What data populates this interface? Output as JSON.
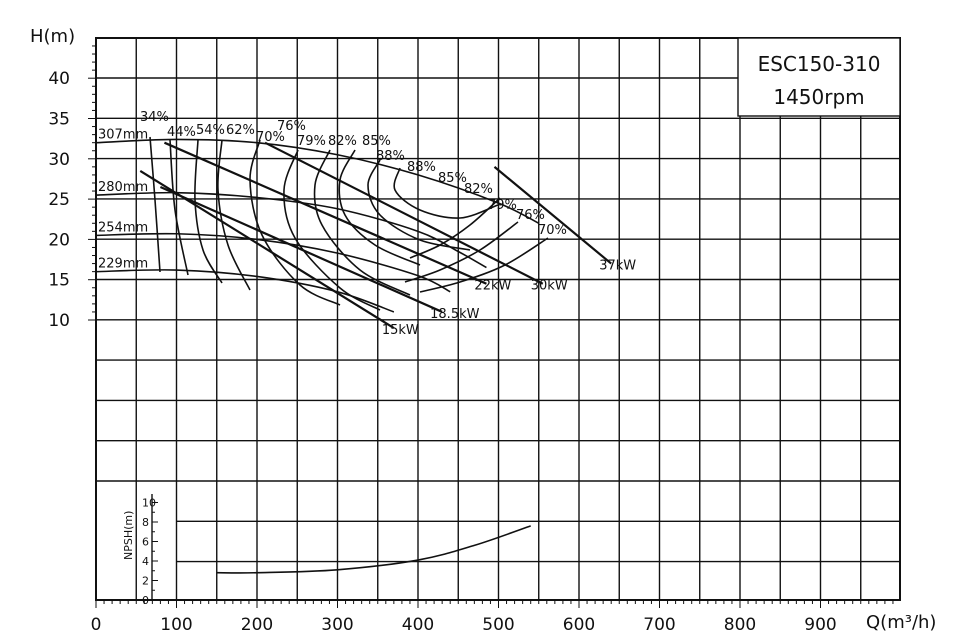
{
  "chart_data": {
    "type": "line",
    "title": "ESC150-310",
    "subtitle": "1450rpm",
    "xlabel": "Q(m³/h)",
    "ylabel": "H(m)",
    "npsh_label": "NPSH(m)",
    "xlim": [
      0,
      1000
    ],
    "ylim": [
      10,
      45
    ],
    "x_ticks": [
      "0",
      "100",
      "200",
      "300",
      "400",
      "500",
      "600",
      "700",
      "800",
      "900"
    ],
    "y_ticks": [
      "40",
      "35",
      "30",
      "25",
      "20",
      "15",
      "10"
    ],
    "npsh_ticks": [
      "10",
      "8",
      "6",
      "4",
      "2",
      "0"
    ],
    "npsh_lim": [
      0,
      10
    ],
    "grid": true,
    "impeller_curves": [
      {
        "label": "307mm",
        "points": [
          [
            0,
            32
          ],
          [
            100,
            32.4
          ],
          [
            200,
            32
          ],
          [
            300,
            30.5
          ],
          [
            400,
            28
          ],
          [
            500,
            24.5
          ],
          [
            550,
            22
          ]
        ]
      },
      {
        "label": "280mm",
        "points": [
          [
            0,
            25.5
          ],
          [
            100,
            25.8
          ],
          [
            200,
            25.2
          ],
          [
            300,
            23.8
          ],
          [
            400,
            21
          ],
          [
            450,
            18.5
          ],
          [
            485,
            16.5
          ]
        ]
      },
      {
        "label": "254mm",
        "points": [
          [
            0,
            20.5
          ],
          [
            100,
            20.7
          ],
          [
            200,
            20
          ],
          [
            300,
            18.3
          ],
          [
            400,
            15.5
          ],
          [
            440,
            13.5
          ]
        ]
      },
      {
        "label": "229mm",
        "points": [
          [
            0,
            16
          ],
          [
            100,
            16.2
          ],
          [
            200,
            15.4
          ],
          [
            300,
            13.5
          ],
          [
            370,
            11
          ]
        ]
      }
    ],
    "efficiency_labels": [
      "34%",
      "44%",
      "54%",
      "62%",
      "70%",
      "76%",
      "79%",
      "82%",
      "85%",
      "88%",
      "88%",
      "85%",
      "82%",
      "79%",
      "76%",
      "70%"
    ],
    "power_lines": [
      {
        "label": "15kW",
        "points": [
          [
            55,
            28.5
          ],
          [
            370,
            9
          ]
        ]
      },
      {
        "label": "18.5kW",
        "points": [
          [
            80,
            26.5
          ],
          [
            430,
            11
          ]
        ]
      },
      {
        "label": "22kW",
        "points": [
          [
            85,
            32
          ],
          [
            485,
            14.5
          ]
        ]
      },
      {
        "label": "30kW",
        "points": [
          [
            210,
            32
          ],
          [
            555,
            14.5
          ]
        ]
      },
      {
        "label": "37kW",
        "points": [
          [
            495,
            29
          ],
          [
            640,
            17
          ]
        ]
      }
    ],
    "npsh_curve": {
      "label": "NPSH",
      "points": [
        [
          150,
          2.8
        ],
        [
          200,
          2.8
        ],
        [
          300,
          3.1
        ],
        [
          400,
          4.1
        ],
        [
          470,
          5.6
        ],
        [
          540,
          7.6
        ]
      ]
    }
  }
}
